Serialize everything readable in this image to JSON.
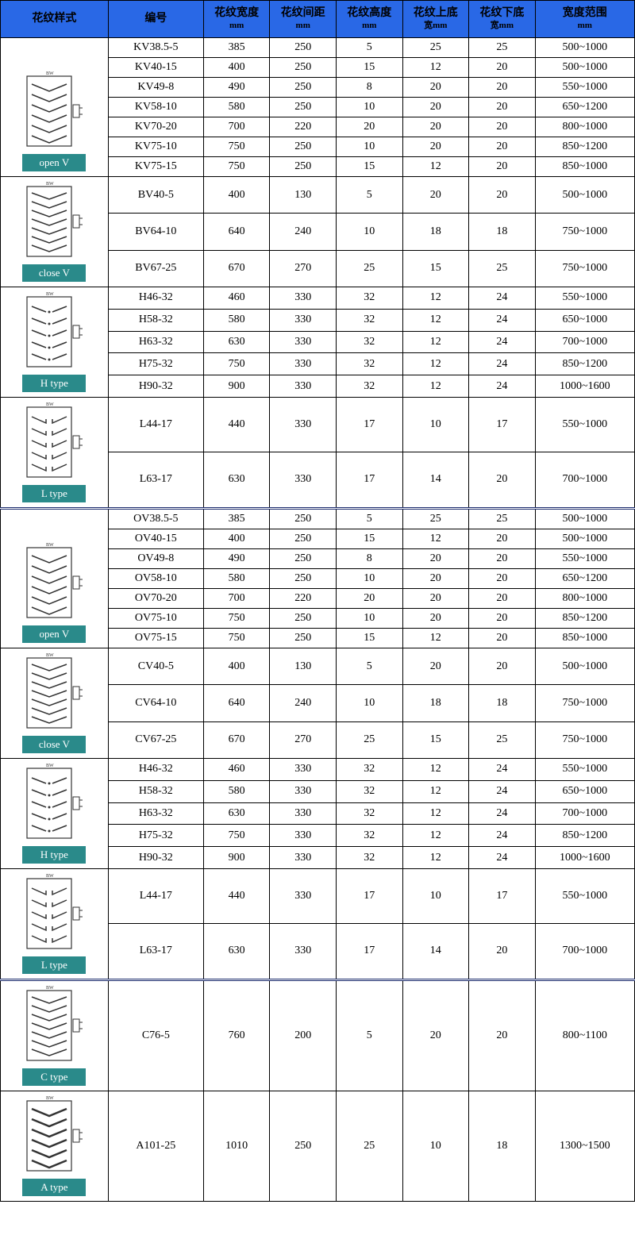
{
  "colors": {
    "header_bg": "#2968e6",
    "header_text": "#000000",
    "border": "#000000",
    "label_bg": "#2a8a8a",
    "label_text": "#ffffff",
    "svg_stroke": "#333333",
    "background": "#ffffff"
  },
  "columns": [
    {
      "key": "style",
      "label": "花纹样式",
      "sub": ""
    },
    {
      "key": "code",
      "label": "编号",
      "sub": ""
    },
    {
      "key": "pw",
      "label": "花纹宽度",
      "sub": "mm"
    },
    {
      "key": "ps",
      "label": "花纹间距",
      "sub": "mm"
    },
    {
      "key": "ph",
      "label": "花纹高度",
      "sub": "mm"
    },
    {
      "key": "tw",
      "label": "花纹上底",
      "sub": "宽mm"
    },
    {
      "key": "bw",
      "label": "花纹下底",
      "sub": "宽mm"
    },
    {
      "key": "rng",
      "label": "宽度范围",
      "sub": "mm"
    }
  ],
  "groups": [
    {
      "label": "open V",
      "pattern": "openV",
      "sep": false,
      "rows": [
        {
          "code": "KV38.5-5",
          "pw": 385,
          "ps": 250,
          "ph": 5,
          "tw": 25,
          "bw": 25,
          "rng": "500~1000"
        },
        {
          "code": "KV40-15",
          "pw": 400,
          "ps": 250,
          "ph": 15,
          "tw": 12,
          "bw": 20,
          "rng": "500~1000"
        },
        {
          "code": "KV49-8",
          "pw": 490,
          "ps": 250,
          "ph": 8,
          "tw": 20,
          "bw": 20,
          "rng": "550~1000"
        },
        {
          "code": "KV58-10",
          "pw": 580,
          "ps": 250,
          "ph": 10,
          "tw": 20,
          "bw": 20,
          "rng": "650~1200"
        },
        {
          "code": "KV70-20",
          "pw": 700,
          "ps": 220,
          "ph": 20,
          "tw": 20,
          "bw": 20,
          "rng": "800~1000"
        },
        {
          "code": "KV75-10",
          "pw": 750,
          "ps": 250,
          "ph": 10,
          "tw": 20,
          "bw": 20,
          "rng": "850~1200"
        },
        {
          "code": "KV75-15",
          "pw": 750,
          "ps": 250,
          "ph": 15,
          "tw": 12,
          "bw": 20,
          "rng": "850~1000"
        }
      ]
    },
    {
      "label": "close V",
      "pattern": "closeV",
      "sep": false,
      "rows": [
        {
          "code": "BV40-5",
          "pw": 400,
          "ps": 130,
          "ph": 5,
          "tw": 20,
          "bw": 20,
          "rng": "500~1000"
        },
        {
          "code": "BV64-10",
          "pw": 640,
          "ps": 240,
          "ph": 10,
          "tw": 18,
          "bw": 18,
          "rng": "750~1000"
        },
        {
          "code": "BV67-25",
          "pw": 670,
          "ps": 270,
          "ph": 25,
          "tw": 15,
          "bw": 25,
          "rng": "750~1000"
        }
      ]
    },
    {
      "label": "H type",
      "pattern": "H",
      "sep": false,
      "rows": [
        {
          "code": "H46-32",
          "pw": 460,
          "ps": 330,
          "ph": 32,
          "tw": 12,
          "bw": 24,
          "rng": "550~1000"
        },
        {
          "code": "H58-32",
          "pw": 580,
          "ps": 330,
          "ph": 32,
          "tw": 12,
          "bw": 24,
          "rng": "650~1000"
        },
        {
          "code": "H63-32",
          "pw": 630,
          "ps": 330,
          "ph": 32,
          "tw": 12,
          "bw": 24,
          "rng": "700~1000"
        },
        {
          "code": "H75-32",
          "pw": 750,
          "ps": 330,
          "ph": 32,
          "tw": 12,
          "bw": 24,
          "rng": "850~1200"
        },
        {
          "code": "H90-32",
          "pw": 900,
          "ps": 330,
          "ph": 32,
          "tw": 12,
          "bw": 24,
          "rng": "1000~1600"
        }
      ]
    },
    {
      "label": "L type",
      "pattern": "L",
      "sep": false,
      "rows": [
        {
          "code": "L44-17",
          "pw": 440,
          "ps": 330,
          "ph": 17,
          "tw": 10,
          "bw": 17,
          "rng": "550~1000"
        },
        {
          "code": "L63-17",
          "pw": 630,
          "ps": 330,
          "ph": 17,
          "tw": 14,
          "bw": 20,
          "rng": "700~1000"
        }
      ]
    },
    {
      "label": "open V",
      "pattern": "openV",
      "sep": true,
      "rows": [
        {
          "code": "OV38.5-5",
          "pw": 385,
          "ps": 250,
          "ph": 5,
          "tw": 25,
          "bw": 25,
          "rng": "500~1000"
        },
        {
          "code": "OV40-15",
          "pw": 400,
          "ps": 250,
          "ph": 15,
          "tw": 12,
          "bw": 20,
          "rng": "500~1000"
        },
        {
          "code": "OV49-8",
          "pw": 490,
          "ps": 250,
          "ph": 8,
          "tw": 20,
          "bw": 20,
          "rng": "550~1000"
        },
        {
          "code": "OV58-10",
          "pw": 580,
          "ps": 250,
          "ph": 10,
          "tw": 20,
          "bw": 20,
          "rng": "650~1200"
        },
        {
          "code": "OV70-20",
          "pw": 700,
          "ps": 220,
          "ph": 20,
          "tw": 20,
          "bw": 20,
          "rng": "800~1000"
        },
        {
          "code": "OV75-10",
          "pw": 750,
          "ps": 250,
          "ph": 10,
          "tw": 20,
          "bw": 20,
          "rng": "850~1200"
        },
        {
          "code": "OV75-15",
          "pw": 750,
          "ps": 250,
          "ph": 15,
          "tw": 12,
          "bw": 20,
          "rng": "850~1000"
        }
      ]
    },
    {
      "label": "close V",
      "pattern": "closeV",
      "sep": false,
      "rows": [
        {
          "code": "CV40-5",
          "pw": 400,
          "ps": 130,
          "ph": 5,
          "tw": 20,
          "bw": 20,
          "rng": "500~1000"
        },
        {
          "code": "CV64-10",
          "pw": 640,
          "ps": 240,
          "ph": 10,
          "tw": 18,
          "bw": 18,
          "rng": "750~1000"
        },
        {
          "code": "CV67-25",
          "pw": 670,
          "ps": 270,
          "ph": 25,
          "tw": 15,
          "bw": 25,
          "rng": "750~1000"
        }
      ]
    },
    {
      "label": "H type",
      "pattern": "H",
      "sep": false,
      "rows": [
        {
          "code": "H46-32",
          "pw": 460,
          "ps": 330,
          "ph": 32,
          "tw": 12,
          "bw": 24,
          "rng": "550~1000"
        },
        {
          "code": "H58-32",
          "pw": 580,
          "ps": 330,
          "ph": 32,
          "tw": 12,
          "bw": 24,
          "rng": "650~1000"
        },
        {
          "code": "H63-32",
          "pw": 630,
          "ps": 330,
          "ph": 32,
          "tw": 12,
          "bw": 24,
          "rng": "700~1000"
        },
        {
          "code": "H75-32",
          "pw": 750,
          "ps": 330,
          "ph": 32,
          "tw": 12,
          "bw": 24,
          "rng": "850~1200"
        },
        {
          "code": "H90-32",
          "pw": 900,
          "ps": 330,
          "ph": 32,
          "tw": 12,
          "bw": 24,
          "rng": "1000~1600"
        }
      ]
    },
    {
      "label": "L type",
      "pattern": "L",
      "sep": false,
      "rows": [
        {
          "code": "L44-17",
          "pw": 440,
          "ps": 330,
          "ph": 17,
          "tw": 10,
          "bw": 17,
          "rng": "550~1000"
        },
        {
          "code": "L63-17",
          "pw": 630,
          "ps": 330,
          "ph": 17,
          "tw": 14,
          "bw": 20,
          "rng": "700~1000"
        }
      ]
    },
    {
      "label": "C type",
      "pattern": "closeV",
      "sep": true,
      "rows": [
        {
          "code": "C76-5",
          "pw": 760,
          "ps": 200,
          "ph": 5,
          "tw": 20,
          "bw": 20,
          "rng": "800~1100"
        }
      ]
    },
    {
      "label": "A type",
      "pattern": "A",
      "sep": false,
      "rows": [
        {
          "code": "A101-25",
          "pw": 1010,
          "ps": 250,
          "ph": 25,
          "tw": 10,
          "bw": 18,
          "rng": "1300~1500"
        }
      ]
    }
  ]
}
